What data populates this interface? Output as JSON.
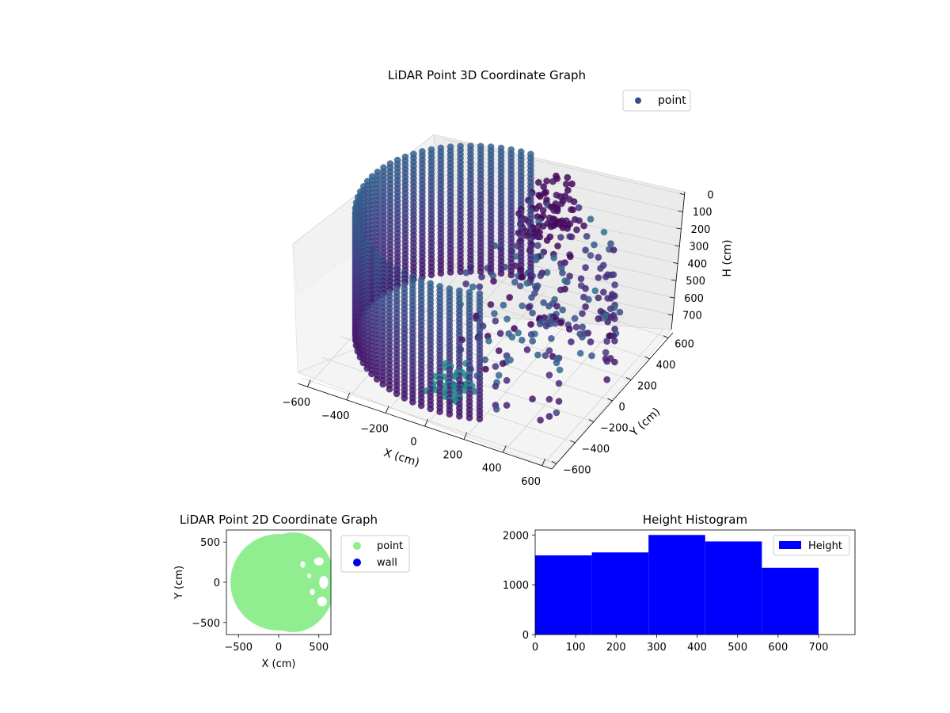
{
  "chart_data": [
    {
      "type": "scatter",
      "projection": "3d",
      "title": "LiDAR Point 3D Coordinate Graph",
      "xlabel": "X (cm)",
      "ylabel": "Y (cm)",
      "zlabel": "H (cm)",
      "xticks": [
        "−600",
        "−400",
        "−200",
        "0",
        "200",
        "400",
        "600"
      ],
      "yticks": [
        "−600",
        "−400",
        "−200",
        "0",
        "200",
        "400",
        "600"
      ],
      "zticks": [
        "0",
        "100",
        "200",
        "300",
        "400",
        "500",
        "600",
        "700"
      ],
      "xlim": [
        -650,
        650
      ],
      "ylim": [
        -650,
        650
      ],
      "zlim": [
        0,
        750
      ],
      "zaxis_inverted": true,
      "series": [
        {
          "name": "point",
          "legend_color": "#3b4a8a",
          "colormap": "viridis"
        }
      ],
      "shape": {
        "kind": "cylindrical wall with open sector",
        "radius": 600,
        "height_range": [
          0,
          700
        ]
      },
      "legend": "top-right",
      "grid": true
    },
    {
      "type": "scatter",
      "title": "LiDAR Point 2D Coordinate Graph",
      "xlabel": "X (cm)",
      "ylabel": "Y (cm)",
      "xticks": [
        "−500",
        "0",
        "500"
      ],
      "yticks": [
        "500",
        "0",
        "−500"
      ],
      "xlim": [
        -650,
        650
      ],
      "ylim": [
        -650,
        650
      ],
      "series": [
        {
          "name": "point",
          "color": "#90ee90"
        },
        {
          "name": "wall",
          "color": "#0000ee"
        }
      ],
      "shape": {
        "kind": "filled disk",
        "radius": 600
      },
      "legend": "outside right"
    },
    {
      "type": "bar",
      "subtype": "histogram",
      "title": "Height Histogram",
      "xticks": [
        "0",
        "100",
        "200",
        "300",
        "400",
        "500",
        "600",
        "700"
      ],
      "yticks": [
        "0",
        "1000",
        "2000"
      ],
      "xlim": [
        0,
        790
      ],
      "ylim": [
        0,
        2100
      ],
      "bins": [
        {
          "x0": 0,
          "x1": 140,
          "count": 1590
        },
        {
          "x0": 140,
          "x1": 280,
          "count": 1650
        },
        {
          "x0": 280,
          "x1": 420,
          "count": 2000
        },
        {
          "x0": 420,
          "x1": 560,
          "count": 1870
        },
        {
          "x0": 560,
          "x1": 700,
          "count": 1340
        }
      ],
      "series": [
        {
          "name": "Height",
          "color": "#0000ff"
        }
      ],
      "legend": "top-right"
    }
  ]
}
